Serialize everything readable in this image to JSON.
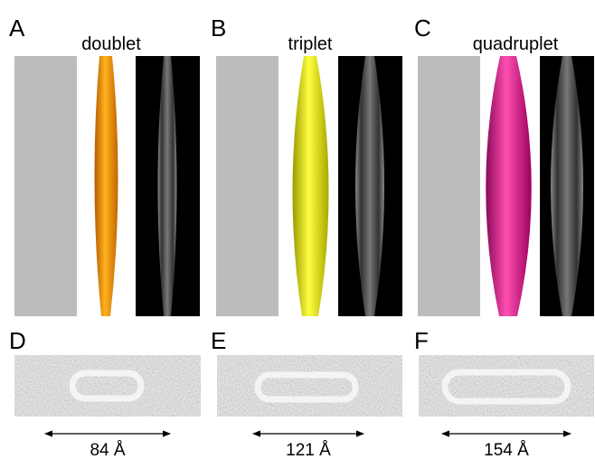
{
  "panels": [
    {
      "letter": "A",
      "title": "doublet"
    },
    {
      "letter": "B",
      "title": "triplet"
    },
    {
      "letter": "C",
      "title": "quadruplet"
    },
    {
      "letter": "D",
      "measure": "84 Å"
    },
    {
      "letter": "E",
      "measure": "121 Å"
    },
    {
      "letter": "F",
      "measure": "154 Å"
    }
  ]
}
